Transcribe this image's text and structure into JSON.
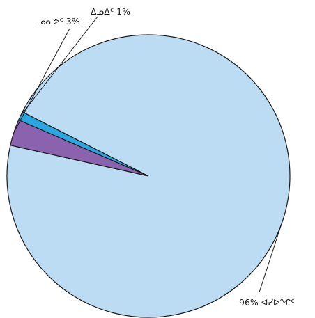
{
  "chart_data": {
    "type": "pie",
    "start_angle_deg": 0,
    "direction": "clockwise",
    "slices": [
      {
        "label": "96% ᐊᓯᐅᖏᑦ",
        "value": 96,
        "color": "#bcdcf3"
      },
      {
        "label": "ᓄᓇᕗᑦ 3%",
        "value": 3,
        "color": "#8a62ad"
      },
      {
        "label": "ᐃᓄᐃᑦ 1%",
        "value": 1,
        "color": "#2aa7e0"
      }
    ]
  }
}
